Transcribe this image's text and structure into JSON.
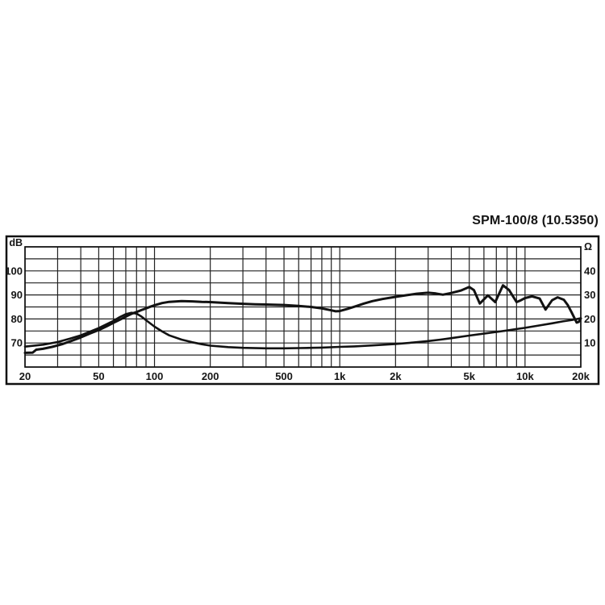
{
  "page": {
    "background": "#ffffff"
  },
  "chart": {
    "title": "SPM-100/8 (10.5350)",
    "left_unit": "dB",
    "right_unit": "Ω",
    "colors": {
      "curve": "#121212",
      "grid": "#222222",
      "frame": "#111111",
      "plot_background": "#ffffff"
    }
  },
  "chart_data": {
    "type": "line",
    "title": "SPM-100/8 (10.5350)",
    "x_axis": {
      "scale": "log",
      "unit": "Hz",
      "min": 20,
      "max": 20000,
      "tick_values": [
        20,
        50,
        100,
        200,
        500,
        1000,
        2000,
        5000,
        10000,
        20000
      ],
      "tick_labels": [
        "20",
        "50",
        "100",
        "200",
        "500",
        "1k",
        "2k",
        "5k",
        "10k",
        "20k"
      ],
      "grid_values": [
        20,
        30,
        40,
        50,
        60,
        70,
        80,
        90,
        100,
        200,
        300,
        400,
        500,
        600,
        700,
        800,
        900,
        1000,
        2000,
        3000,
        4000,
        5000,
        6000,
        7000,
        8000,
        9000,
        10000,
        20000
      ],
      "grid": true
    },
    "y_left": {
      "label": "dB",
      "min": 60,
      "max": 110,
      "grid_step": 5,
      "tick_values": [
        100,
        90,
        80,
        70
      ],
      "tick_labels": [
        "100",
        "90",
        "80",
        "70"
      ],
      "grid": true
    },
    "y_right": {
      "label": "Ω",
      "min": 0,
      "max": 50,
      "tick_values": [
        40,
        30,
        20,
        10
      ],
      "tick_labels": [
        "40",
        "30",
        "20",
        "10"
      ]
    },
    "legend": "none",
    "series": [
      {
        "name": "SPL frequency response",
        "axis": "left",
        "unit": "dB",
        "stroke_width": 3,
        "points": [
          [
            20,
            65.9
          ],
          [
            22,
            66.0
          ],
          [
            23,
            67.2
          ],
          [
            25,
            67.6
          ],
          [
            28,
            68.4
          ],
          [
            32,
            69.6
          ],
          [
            36,
            71.0
          ],
          [
            40,
            72.3
          ],
          [
            45,
            74.0
          ],
          [
            50,
            75.4
          ],
          [
            55,
            76.9
          ],
          [
            60,
            78.4
          ],
          [
            65,
            79.7
          ],
          [
            70,
            81.0
          ],
          [
            75,
            82.1
          ],
          [
            80,
            82.9
          ],
          [
            85,
            83.7
          ],
          [
            90,
            84.4
          ],
          [
            95,
            85.1
          ],
          [
            100,
            85.7
          ],
          [
            110,
            86.6
          ],
          [
            120,
            87.1
          ],
          [
            140,
            87.4
          ],
          [
            160,
            87.3
          ],
          [
            180,
            87.1
          ],
          [
            200,
            87.0
          ],
          [
            250,
            86.6
          ],
          [
            300,
            86.3
          ],
          [
            350,
            86.1
          ],
          [
            400,
            86.0
          ],
          [
            500,
            85.8
          ],
          [
            600,
            85.4
          ],
          [
            700,
            85.0
          ],
          [
            800,
            84.4
          ],
          [
            900,
            83.6
          ],
          [
            950,
            83.2
          ],
          [
            1000,
            83.3
          ],
          [
            1100,
            84.2
          ],
          [
            1200,
            85.1
          ],
          [
            1350,
            86.4
          ],
          [
            1500,
            87.4
          ],
          [
            1700,
            88.3
          ],
          [
            2000,
            89.2
          ],
          [
            2300,
            89.9
          ],
          [
            2600,
            90.5
          ],
          [
            3000,
            90.9
          ],
          [
            3300,
            90.6
          ],
          [
            3600,
            90.1
          ],
          [
            4000,
            90.8
          ],
          [
            4500,
            91.8
          ],
          [
            5000,
            93.3
          ],
          [
            5300,
            92.0
          ],
          [
            5700,
            86.4
          ],
          [
            6300,
            89.8
          ],
          [
            6900,
            87.0
          ],
          [
            7600,
            94.0
          ],
          [
            8200,
            92.0
          ],
          [
            9000,
            87.0
          ],
          [
            9500,
            87.8
          ],
          [
            10000,
            88.7
          ],
          [
            10900,
            89.4
          ],
          [
            12000,
            88.5
          ],
          [
            12900,
            83.9
          ],
          [
            14000,
            87.8
          ],
          [
            15000,
            89.0
          ],
          [
            16200,
            88.0
          ],
          [
            17000,
            85.8
          ],
          [
            17800,
            82.9
          ],
          [
            19000,
            78.5
          ],
          [
            19500,
            78.8
          ],
          [
            20000,
            80.2
          ]
        ]
      },
      {
        "name": "Impedance",
        "axis": "right",
        "unit": "Ω",
        "stroke_width": 2.6,
        "points": [
          [
            20,
            8.5
          ],
          [
            25,
            9.3
          ],
          [
            30,
            10.4
          ],
          [
            35,
            11.8
          ],
          [
            40,
            13.2
          ],
          [
            45,
            14.8
          ],
          [
            50,
            16.2
          ],
          [
            55,
            17.8
          ],
          [
            60,
            19.2
          ],
          [
            65,
            20.8
          ],
          [
            70,
            22.0
          ],
          [
            75,
            22.6
          ],
          [
            80,
            22.2
          ],
          [
            85,
            21.0
          ],
          [
            90,
            19.5
          ],
          [
            100,
            16.8
          ],
          [
            110,
            14.8
          ],
          [
            120,
            13.2
          ],
          [
            140,
            11.4
          ],
          [
            160,
            10.3
          ],
          [
            180,
            9.5
          ],
          [
            200,
            8.9
          ],
          [
            250,
            8.3
          ],
          [
            300,
            8.0
          ],
          [
            400,
            7.8
          ],
          [
            500,
            7.8
          ],
          [
            600,
            7.9
          ],
          [
            700,
            8.0
          ],
          [
            800,
            8.1
          ],
          [
            1000,
            8.4
          ],
          [
            1200,
            8.6
          ],
          [
            1500,
            9.0
          ],
          [
            2000,
            9.6
          ],
          [
            2500,
            10.2
          ],
          [
            3000,
            10.8
          ],
          [
            3500,
            11.4
          ],
          [
            4000,
            12.0
          ],
          [
            5000,
            13.1
          ],
          [
            6000,
            13.9
          ],
          [
            7000,
            14.6
          ],
          [
            8000,
            15.2
          ],
          [
            9000,
            15.8
          ],
          [
            10000,
            16.3
          ],
          [
            12000,
            17.3
          ],
          [
            14000,
            18.2
          ],
          [
            16000,
            19.0
          ],
          [
            18000,
            19.6
          ],
          [
            20000,
            20.3
          ]
        ]
      }
    ]
  }
}
